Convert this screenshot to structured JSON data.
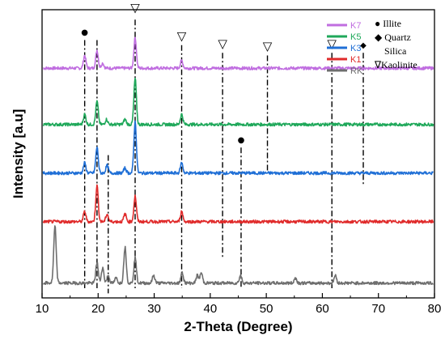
{
  "chart_data": {
    "type": "line",
    "xlabel": "2-Theta (Degree)",
    "ylabel": "Intensity [a.u]",
    "xlim": [
      10,
      80
    ],
    "x_ticks": [
      "10",
      "20",
      "30",
      "40",
      "50",
      "60",
      "70",
      "80"
    ],
    "series": [
      {
        "name": "K7",
        "color": "#c06ee0",
        "baseline": 0.86,
        "peaks": [
          [
            17.6,
            0.05
          ],
          [
            19.8,
            0.07
          ],
          [
            26.6,
            0.12
          ],
          [
            34.9,
            0.03
          ],
          [
            20.8,
            0.02
          ]
        ]
      },
      {
        "name": "K5",
        "color": "#1fa85a",
        "baseline": 0.64,
        "peaks": [
          [
            17.6,
            0.04
          ],
          [
            19.8,
            0.09
          ],
          [
            26.6,
            0.18
          ],
          [
            34.9,
            0.04
          ],
          [
            21.5,
            0.02
          ],
          [
            24.8,
            0.02
          ]
        ]
      },
      {
        "name": "K3",
        "color": "#1f6fd6",
        "baseline": 0.45,
        "peaks": [
          [
            17.6,
            0.04
          ],
          [
            19.8,
            0.1
          ],
          [
            26.6,
            0.2
          ],
          [
            34.9,
            0.04
          ],
          [
            21.6,
            0.03
          ],
          [
            24.8,
            0.02
          ]
        ]
      },
      {
        "name": "K1",
        "color": "#e02b2b",
        "baseline": 0.26,
        "peaks": [
          [
            17.6,
            0.04
          ],
          [
            19.8,
            0.14
          ],
          [
            26.6,
            0.1
          ],
          [
            34.9,
            0.04
          ],
          [
            21.6,
            0.03
          ],
          [
            24.8,
            0.03
          ]
        ]
      },
      {
        "name": "RK",
        "color": "#6e6e6e",
        "baseline": 0.02,
        "peaks": [
          [
            12.3,
            0.22
          ],
          [
            19.8,
            0.08
          ],
          [
            24.8,
            0.14
          ],
          [
            26.6,
            0.1
          ],
          [
            20.8,
            0.06
          ],
          [
            21.8,
            0.03
          ],
          [
            23.2,
            0.02
          ],
          [
            29.9,
            0.03
          ],
          [
            35.0,
            0.04
          ],
          [
            37.7,
            0.03
          ],
          [
            38.4,
            0.04
          ],
          [
            45.4,
            0.03
          ],
          [
            55.2,
            0.02
          ],
          [
            62.3,
            0.03
          ]
        ]
      }
    ],
    "reference_lines": [
      17.6,
      19.8,
      21.8,
      26.6,
      34.9,
      42.2,
      45.5,
      50.2,
      61.7,
      67.3
    ],
    "markers": [
      {
        "symbol": "●",
        "x": 17.6,
        "y": 0.99
      },
      {
        "symbol": "▽",
        "x": 26.6,
        "y": 1.08
      },
      {
        "symbol": "▽",
        "x": 34.9,
        "y": 0.97
      },
      {
        "symbol": "▽",
        "x": 42.2,
        "y": 0.94
      },
      {
        "symbol": "▽",
        "x": 50.2,
        "y": 0.93
      },
      {
        "symbol": "▽",
        "x": 61.7,
        "y": 0.94
      },
      {
        "symbol": "◆",
        "x": 67.3,
        "y": 0.94
      },
      {
        "symbol": "●",
        "x": 45.5,
        "y": 0.57
      }
    ],
    "legend": [
      "K7",
      "K5",
      "K3",
      "K1",
      "RK"
    ],
    "phase_legend": [
      "● Illite",
      "◆ Quartz",
      "Silica",
      "∇Kaolinite"
    ]
  }
}
